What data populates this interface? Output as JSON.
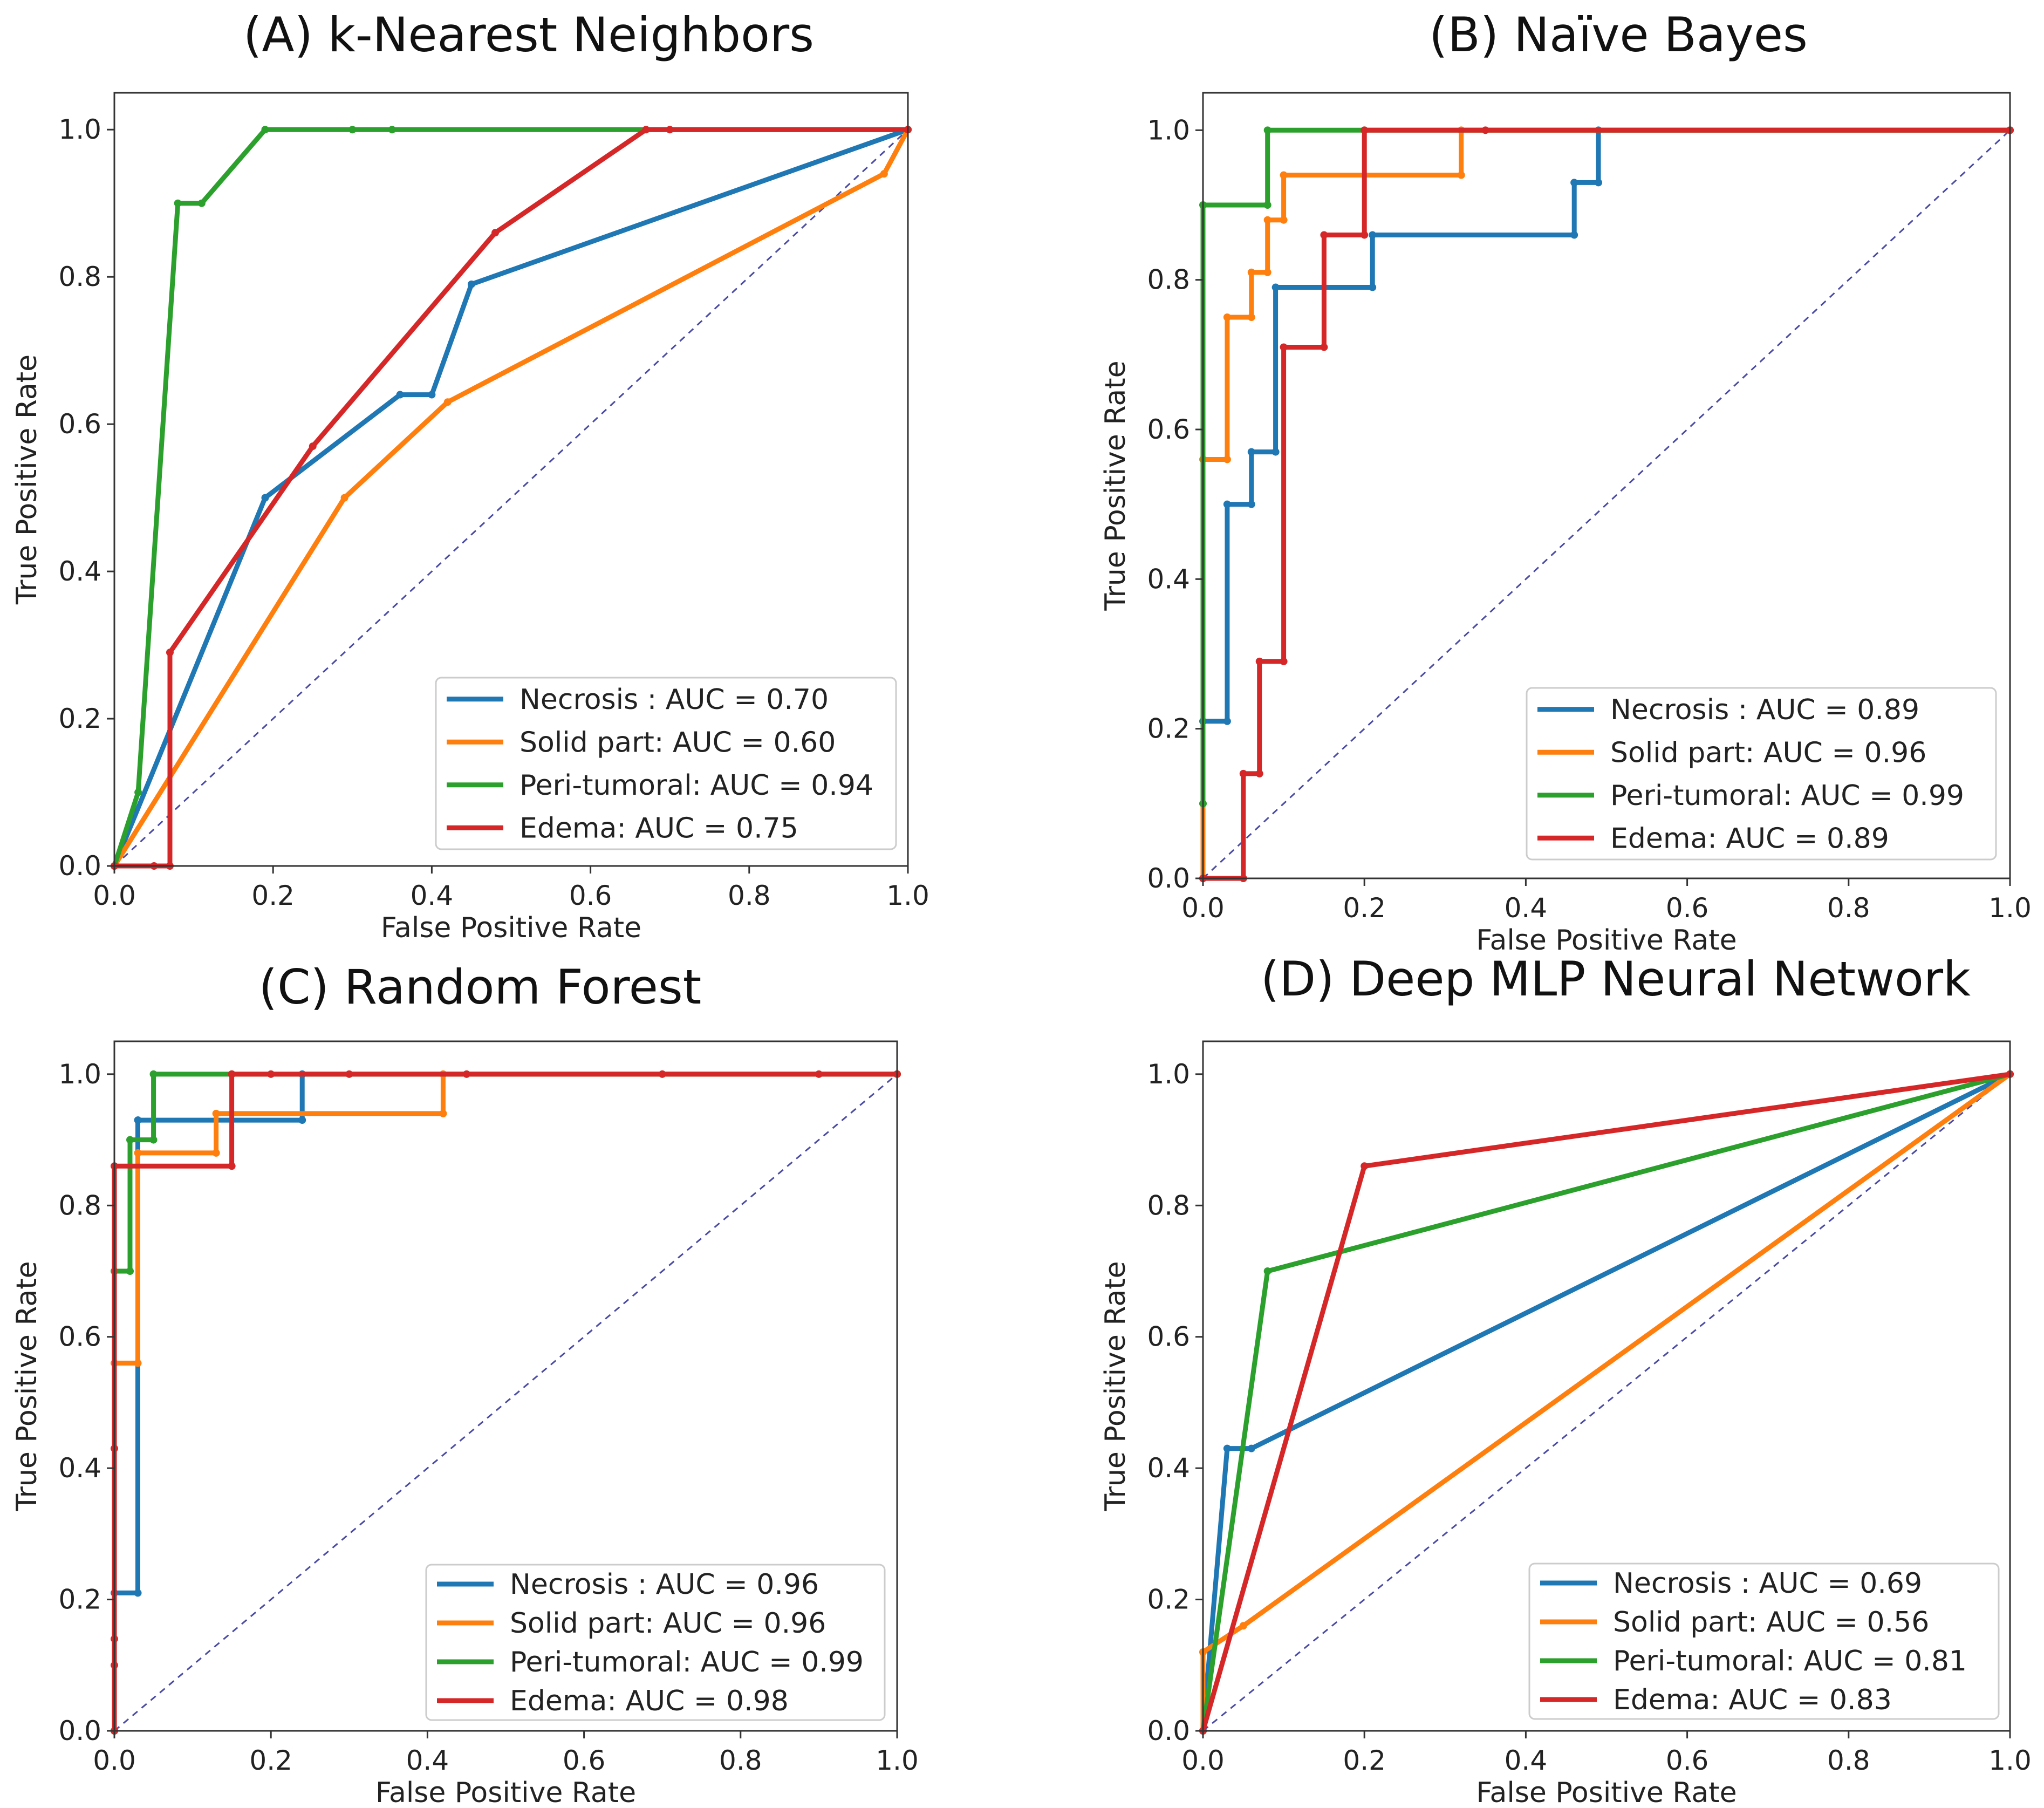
{
  "chart_data": [
    {
      "type": "line",
      "title": "(A) k-Nearest Neighbors",
      "xlabel": "False Positive Rate",
      "ylabel": "True Positive Rate",
      "xlim": [
        0,
        1
      ],
      "ylim": [
        0,
        1.05
      ],
      "xticks": [
        "0.0",
        "0.2",
        "0.4",
        "0.6",
        "0.8",
        "1.0"
      ],
      "yticks": [
        "0.0",
        "0.2",
        "0.4",
        "0.6",
        "0.8",
        "1.0"
      ],
      "grid": false,
      "legend_position": "lower-right",
      "diagonal": {
        "x": [
          0,
          1
        ],
        "y": [
          0,
          1
        ],
        "color": "#4b4ba6",
        "style": "dashed"
      },
      "series": [
        {
          "name": "Necrosis : AUC = 0.70",
          "color": "#1f77b4",
          "x": [
            0,
            0.19,
            0.36,
            0.4,
            0.45,
            1.0
          ],
          "y": [
            0,
            0.5,
            0.64,
            0.64,
            0.79,
            1.0
          ]
        },
        {
          "name": "Solid part: AUC = 0.60",
          "color": "#ff7f0e",
          "x": [
            0,
            0.29,
            0.42,
            0.97,
            1.0
          ],
          "y": [
            0,
            0.5,
            0.63,
            0.94,
            1.0
          ]
        },
        {
          "name": "Peri-tumoral: AUC = 0.94",
          "color": "#2ca02c",
          "x": [
            0,
            0.03,
            0.08,
            0.11,
            0.19,
            0.3,
            0.35,
            1.0
          ],
          "y": [
            0,
            0.1,
            0.9,
            0.9,
            1.0,
            1.0,
            1.0,
            1.0
          ]
        },
        {
          "name": "Edema: AUC = 0.75",
          "color": "#d62728",
          "x": [
            0,
            0.05,
            0.07,
            0.07,
            0.25,
            0.48,
            0.67,
            0.7,
            1.0
          ],
          "y": [
            0,
            0,
            0,
            0.29,
            0.57,
            0.86,
            1.0,
            1.0,
            1.0
          ]
        }
      ]
    },
    {
      "type": "line",
      "title": "(B) Naïve Bayes",
      "xlabel": "False Positive Rate",
      "ylabel": "True Positive Rate",
      "xlim": [
        0,
        1
      ],
      "ylim": [
        0,
        1.05
      ],
      "xticks": [
        "0.0",
        "0.2",
        "0.4",
        "0.6",
        "0.8",
        "1.0"
      ],
      "yticks": [
        "0.0",
        "0.2",
        "0.4",
        "0.6",
        "0.8",
        "1.0"
      ],
      "grid": false,
      "legend_position": "lower-right",
      "diagonal": {
        "x": [
          0,
          1
        ],
        "y": [
          0,
          1
        ],
        "color": "#4b4ba6",
        "style": "dashed"
      },
      "series": [
        {
          "name": "Necrosis : AUC = 0.89",
          "color": "#1f77b4",
          "x": [
            0,
            0,
            0.03,
            0.03,
            0.06,
            0.06,
            0.09,
            0.09,
            0.21,
            0.21,
            0.46,
            0.46,
            0.49,
            0.49,
            1.0
          ],
          "y": [
            0,
            0.21,
            0.21,
            0.5,
            0.5,
            0.57,
            0.57,
            0.79,
            0.79,
            0.86,
            0.86,
            0.93,
            0.93,
            1.0,
            1.0
          ]
        },
        {
          "name": "Solid part: AUC = 0.96",
          "color": "#ff7f0e",
          "x": [
            0,
            0,
            0.03,
            0.03,
            0.06,
            0.06,
            0.08,
            0.08,
            0.1,
            0.1,
            0.32,
            0.32,
            1.0
          ],
          "y": [
            0,
            0.56,
            0.56,
            0.75,
            0.75,
            0.81,
            0.81,
            0.88,
            0.88,
            0.94,
            0.94,
            1.0,
            1.0
          ]
        },
        {
          "name": "Peri-tumoral: AUC = 0.99",
          "color": "#2ca02c",
          "x": [
            0,
            0,
            0.08,
            0.08,
            0.2,
            1.0
          ],
          "y": [
            0.1,
            0.9,
            0.9,
            1.0,
            1.0,
            1.0
          ]
        },
        {
          "name": "Edema: AUC = 0.89",
          "color": "#d62728",
          "x": [
            0,
            0.05,
            0.05,
            0.07,
            0.07,
            0.1,
            0.1,
            0.15,
            0.15,
            0.2,
            0.2,
            0.35,
            1.0
          ],
          "y": [
            0,
            0,
            0.14,
            0.14,
            0.29,
            0.29,
            0.71,
            0.71,
            0.86,
            0.86,
            1.0,
            1.0,
            1.0
          ]
        }
      ]
    },
    {
      "type": "line",
      "title": "(C) Random Forest",
      "xlabel": "False Positive Rate",
      "ylabel": "True Positive Rate",
      "xlim": [
        0,
        1
      ],
      "ylim": [
        0,
        1.05
      ],
      "xticks": [
        "0.0",
        "0.2",
        "0.4",
        "0.6",
        "0.8",
        "1.0"
      ],
      "yticks": [
        "0.0",
        "0.2",
        "0.4",
        "0.6",
        "0.8",
        "1.0"
      ],
      "grid": false,
      "legend_position": "lower-right",
      "diagonal": {
        "x": [
          0,
          1
        ],
        "y": [
          0,
          1
        ],
        "color": "#4b4ba6",
        "style": "dashed"
      },
      "series": [
        {
          "name": "Necrosis : AUC = 0.96",
          "color": "#1f77b4",
          "x": [
            0,
            0,
            0.03,
            0.03,
            0.24,
            0.24,
            1.0
          ],
          "y": [
            0,
            0.21,
            0.21,
            0.93,
            0.93,
            1.0,
            1.0
          ]
        },
        {
          "name": "Solid part: AUC = 0.96",
          "color": "#ff7f0e",
          "x": [
            0,
            0,
            0.03,
            0.03,
            0.13,
            0.13,
            0.42,
            0.42,
            1.0
          ],
          "y": [
            0,
            0.56,
            0.56,
            0.88,
            0.88,
            0.94,
            0.94,
            1.0,
            1.0
          ]
        },
        {
          "name": "Peri-tumoral: AUC = 0.99",
          "color": "#2ca02c",
          "x": [
            0,
            0,
            0.02,
            0.02,
            0.05,
            0.05,
            0.15,
            1.0
          ],
          "y": [
            0,
            0.7,
            0.7,
            0.9,
            0.9,
            1.0,
            1.0,
            1.0
          ]
        },
        {
          "name": "Edema: AUC = 0.98",
          "color": "#d62728",
          "x": [
            0,
            0,
            0,
            0,
            0,
            0.15,
            0.15,
            0.2,
            0.3,
            0.45,
            0.7,
            0.9,
            1.0
          ],
          "y": [
            0,
            0.1,
            0.14,
            0.43,
            0.86,
            0.86,
            1.0,
            1.0,
            1.0,
            1.0,
            1.0,
            1.0,
            1.0
          ]
        }
      ]
    },
    {
      "type": "line",
      "title": "(D) Deep MLP Neural Network",
      "xlabel": "False Positive Rate",
      "ylabel": "True Positive Rate",
      "xlim": [
        0,
        1
      ],
      "ylim": [
        0,
        1.05
      ],
      "xticks": [
        "0.0",
        "0.2",
        "0.4",
        "0.6",
        "0.8",
        "1.0"
      ],
      "yticks": [
        "0.0",
        "0.2",
        "0.4",
        "0.6",
        "0.8",
        "1.0"
      ],
      "grid": false,
      "legend_position": "lower-right",
      "diagonal": {
        "x": [
          0,
          1
        ],
        "y": [
          0,
          1
        ],
        "color": "#4b4ba6",
        "style": "dashed"
      },
      "series": [
        {
          "name": "Necrosis : AUC = 0.69",
          "color": "#1f77b4",
          "x": [
            0,
            0.03,
            0.06,
            1.0
          ],
          "y": [
            0,
            0.43,
            0.43,
            1.0
          ]
        },
        {
          "name": "Solid part: AUC = 0.56",
          "color": "#ff7f0e",
          "x": [
            0,
            0,
            0.05,
            1.0
          ],
          "y": [
            0,
            0.12,
            0.16,
            1.0
          ]
        },
        {
          "name": "Peri-tumoral: AUC = 0.81",
          "color": "#2ca02c",
          "x": [
            0,
            0.08,
            1.0
          ],
          "y": [
            0,
            0.7,
            1.0
          ]
        },
        {
          "name": "Edema: AUC = 0.83",
          "color": "#d62728",
          "x": [
            0,
            0.2,
            1.0
          ],
          "y": [
            0,
            0.86,
            1.0
          ]
        }
      ]
    }
  ]
}
